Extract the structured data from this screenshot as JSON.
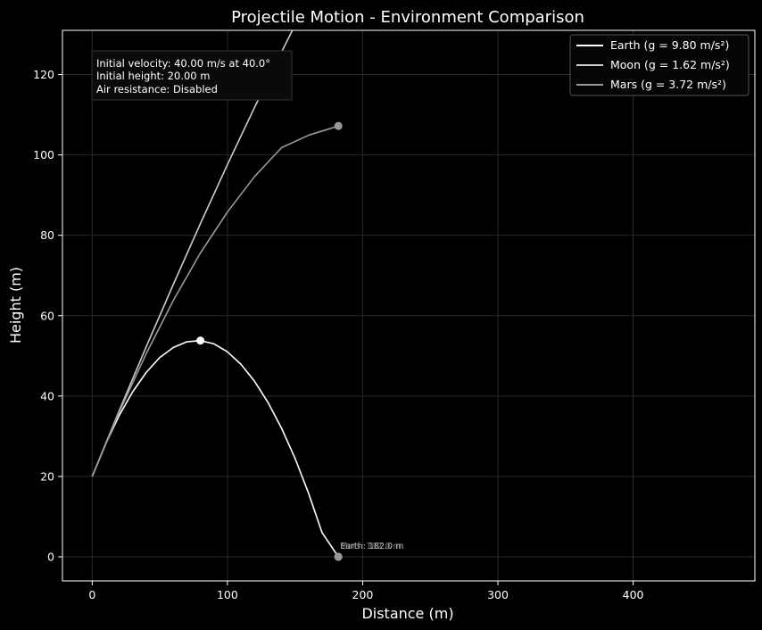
{
  "chart_data": {
    "type": "line",
    "title": "Projectile Motion - Environment Comparison",
    "xlabel": "Distance (m)",
    "ylabel": "Height (m)",
    "xlim": [
      -22,
      490
    ],
    "ylim": [
      -6,
      131
    ],
    "xticks": [
      0,
      100,
      200,
      300,
      400
    ],
    "yticks": [
      0,
      20,
      40,
      60,
      80,
      100,
      120
    ],
    "grid": true,
    "legend_position": "top-right",
    "info_box": {
      "line1": "Initial velocity: 40.00 m/s at 40.0°",
      "line2": "Initial height: 20.00 m",
      "line3": "Air resistance: Disabled"
    },
    "series": [
      {
        "name": "Earth (g = 9.80 m/s²)",
        "color": "#ffffff",
        "x": [
          0,
          10,
          20,
          30,
          40,
          50,
          60,
          70,
          80,
          90,
          100,
          110,
          120,
          130,
          140,
          150,
          160,
          170,
          182
        ],
        "y": [
          20.0,
          28.1,
          35.2,
          41.1,
          45.9,
          49.6,
          52.1,
          53.5,
          53.8,
          53.0,
          51.0,
          47.9,
          43.7,
          38.4,
          32.0,
          24.5,
          15.8,
          6.0,
          0.0
        ],
        "marker": {
          "x": 80,
          "y": 53.8
        },
        "end_marker": {
          "x": 182,
          "y": 0.0
        },
        "end_label": "Earth: 182.0 m"
      },
      {
        "name": "Moon (g = 1.62 m/s²)",
        "color": "#cccccc",
        "x": [
          0,
          20,
          40,
          60,
          80,
          100,
          120,
          140,
          151
        ],
        "y": [
          20.0,
          36.4,
          52.3,
          67.8,
          82.9,
          97.6,
          111.8,
          125.6,
          133.0
        ]
      },
      {
        "name": "Mars (g = 3.72 m/s²)",
        "color": "#999999",
        "x": [
          0,
          20,
          40,
          60,
          80,
          100,
          120,
          140,
          160,
          182
        ],
        "y": [
          20.0,
          36.0,
          50.6,
          63.8,
          75.6,
          85.8,
          94.6,
          101.8,
          104.9,
          107.2
        ],
        "marker": {
          "x": 182,
          "y": 107.2
        },
        "end_marker": {
          "x": 182,
          "y": 0.0
        },
        "end_label": "Mars: 182.0 m"
      }
    ]
  }
}
